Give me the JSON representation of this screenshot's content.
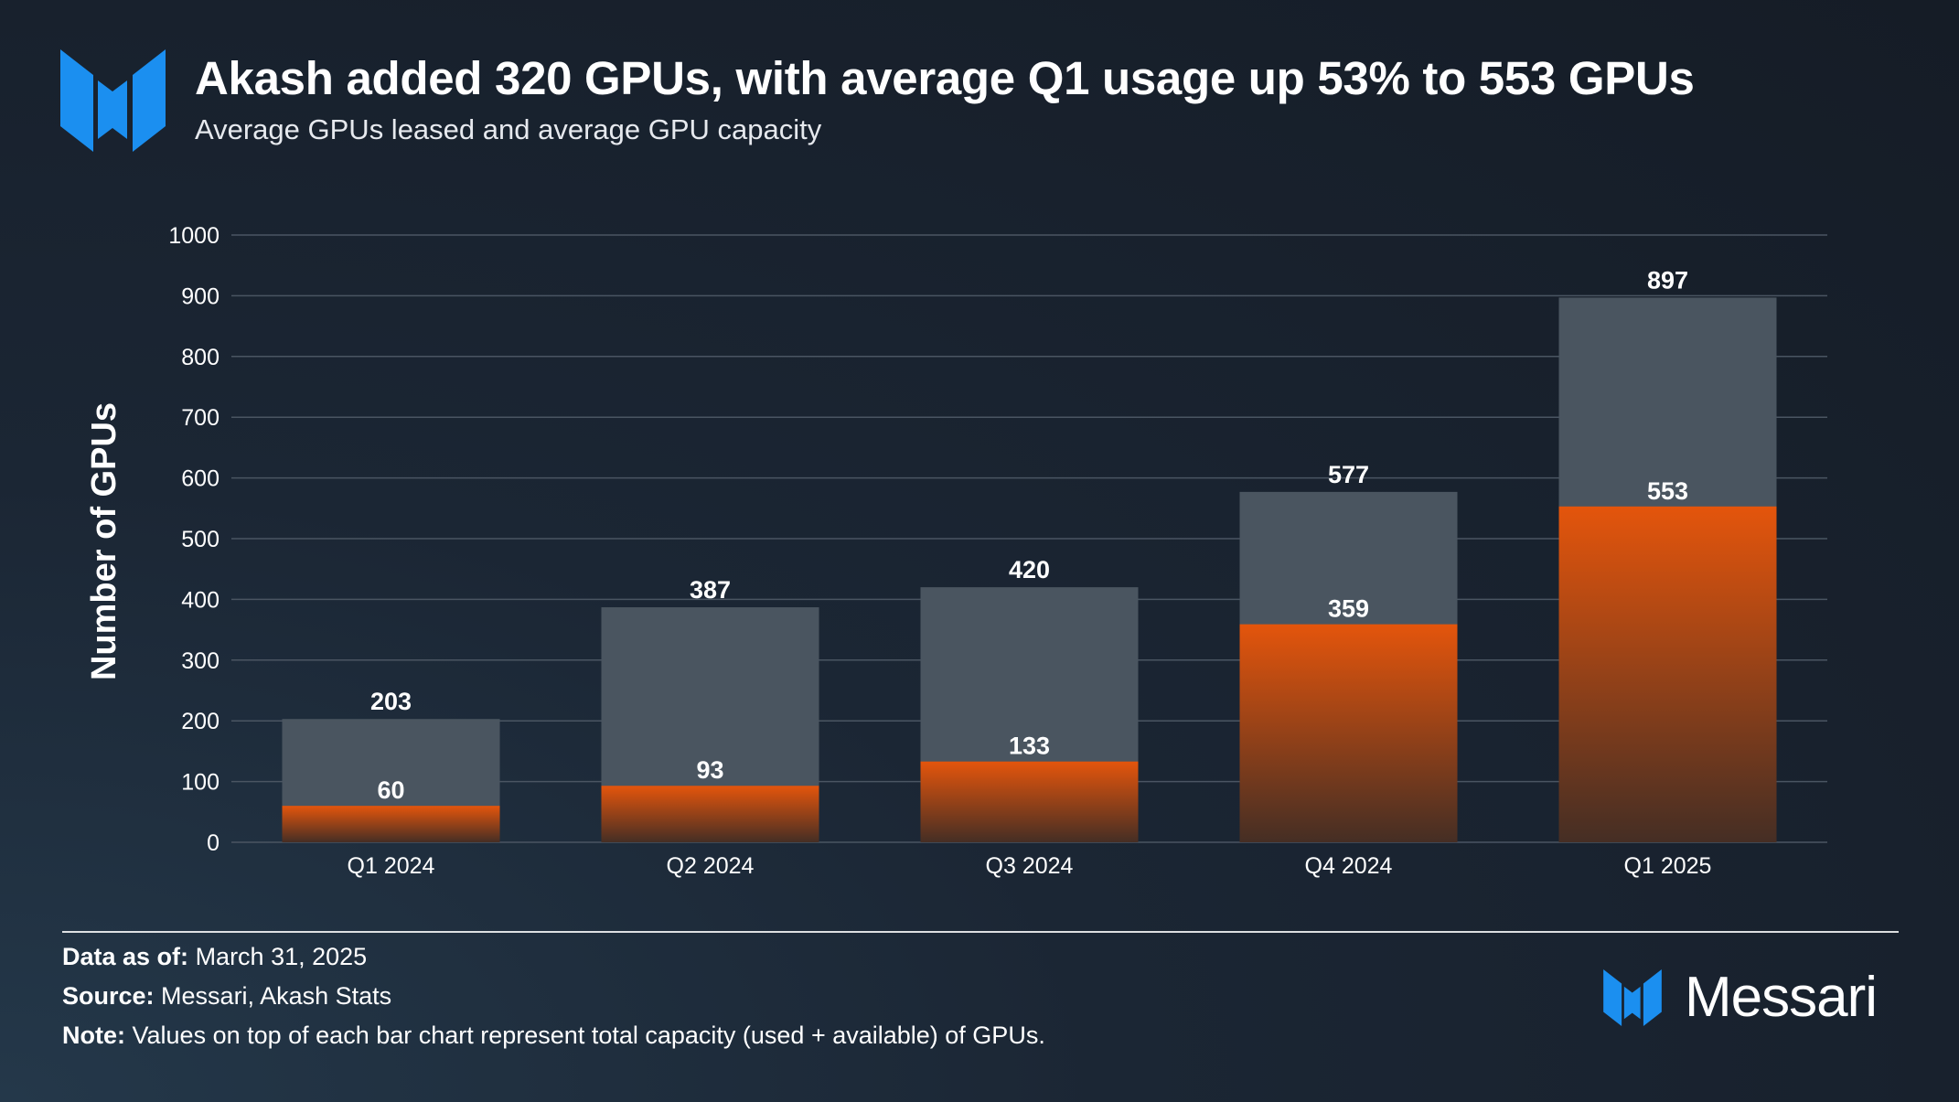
{
  "header": {
    "title": "Akash added 320 GPUs, with average Q1 usage up 53% to 553 GPUs",
    "subtitle": "Average GPUs leased and average GPU capacity",
    "logo_icon": "messari-logo-icon"
  },
  "colors": {
    "logo_blue": "#1b8ff0",
    "capacity_bar": "#4a5560",
    "leased_top": "#e4550c",
    "leased_bottom": "#452e24",
    "gridline": "#4a5562"
  },
  "chart_data": {
    "type": "bar",
    "title": "Akash added 320 GPUs, with average Q1 usage up 53% to 553 GPUs",
    "subtitle": "Average GPUs leased and average GPU capacity",
    "xlabel": "",
    "ylabel": "Number of GPUs",
    "ylim": [
      0,
      1000
    ],
    "yticks": [
      "0",
      "100",
      "200",
      "300",
      "400",
      "500",
      "600",
      "700",
      "800",
      "900",
      "1000"
    ],
    "grid": true,
    "categories": [
      "Q1 2024",
      "Q2 2024",
      "Q3 2024",
      "Q4 2024",
      "Q1 2025"
    ],
    "series": [
      {
        "name": "Average GPU capacity",
        "values": [
          203,
          387,
          420,
          577,
          897
        ],
        "labels": [
          "203",
          "387",
          "420",
          "577",
          "897"
        ]
      },
      {
        "name": "Average GPUs leased",
        "values": [
          60,
          93,
          133,
          359,
          553
        ],
        "labels": [
          "60",
          "93",
          "133",
          "359",
          "553"
        ]
      }
    ]
  },
  "footer": {
    "date_label": "Data as of:",
    "date_value": "March 31, 2025",
    "source_label": "Source:",
    "source_value": "Messari, Akash Stats",
    "note_label": "Note:",
    "note_value": "Values on top of each bar chart represent total capacity (used + available) of GPUs."
  },
  "brand": {
    "name": "Messari",
    "icon": "messari-brand-icon"
  }
}
